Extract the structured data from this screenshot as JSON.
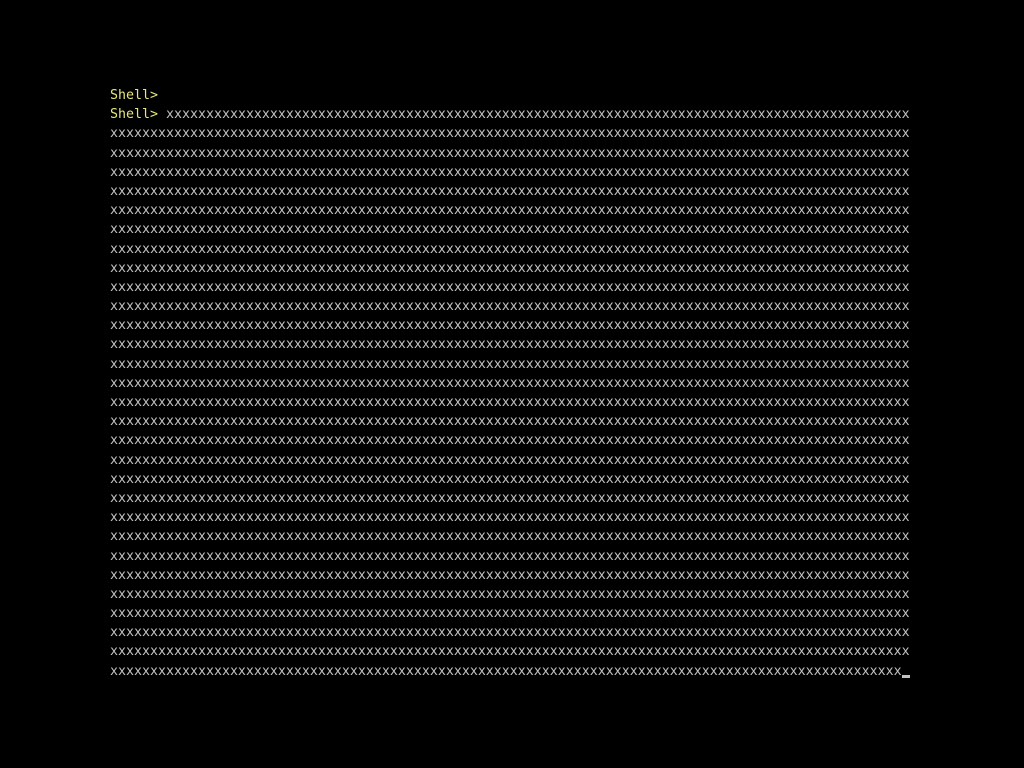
{
  "terminal": {
    "prompt_label": "Shell>",
    "fill_char": "x",
    "columns": 100,
    "colors": {
      "background": "#000000",
      "prompt": "#e6e67e",
      "text": "#c2c2c2",
      "cursor": "#c2c2c2"
    },
    "cursor": {
      "style": "underscore",
      "visible": true,
      "row": 30,
      "col": 99
    },
    "lines": [
      {
        "prompt": true,
        "x_count": 0
      },
      {
        "prompt": true,
        "x_count": 93
      },
      {
        "prompt": false,
        "x_count": 100
      },
      {
        "prompt": false,
        "x_count": 100
      },
      {
        "prompt": false,
        "x_count": 100
      },
      {
        "prompt": false,
        "x_count": 100
      },
      {
        "prompt": false,
        "x_count": 100
      },
      {
        "prompt": false,
        "x_count": 100
      },
      {
        "prompt": false,
        "x_count": 100
      },
      {
        "prompt": false,
        "x_count": 100
      },
      {
        "prompt": false,
        "x_count": 100
      },
      {
        "prompt": false,
        "x_count": 100
      },
      {
        "prompt": false,
        "x_count": 100
      },
      {
        "prompt": false,
        "x_count": 100
      },
      {
        "prompt": false,
        "x_count": 100
      },
      {
        "prompt": false,
        "x_count": 100
      },
      {
        "prompt": false,
        "x_count": 100
      },
      {
        "prompt": false,
        "x_count": 100
      },
      {
        "prompt": false,
        "x_count": 100
      },
      {
        "prompt": false,
        "x_count": 100
      },
      {
        "prompt": false,
        "x_count": 100
      },
      {
        "prompt": false,
        "x_count": 100
      },
      {
        "prompt": false,
        "x_count": 100
      },
      {
        "prompt": false,
        "x_count": 100
      },
      {
        "prompt": false,
        "x_count": 100
      },
      {
        "prompt": false,
        "x_count": 100
      },
      {
        "prompt": false,
        "x_count": 100
      },
      {
        "prompt": false,
        "x_count": 100
      },
      {
        "prompt": false,
        "x_count": 100
      },
      {
        "prompt": false,
        "x_count": 100
      },
      {
        "prompt": false,
        "x_count": 99,
        "cursor": true
      }
    ]
  }
}
